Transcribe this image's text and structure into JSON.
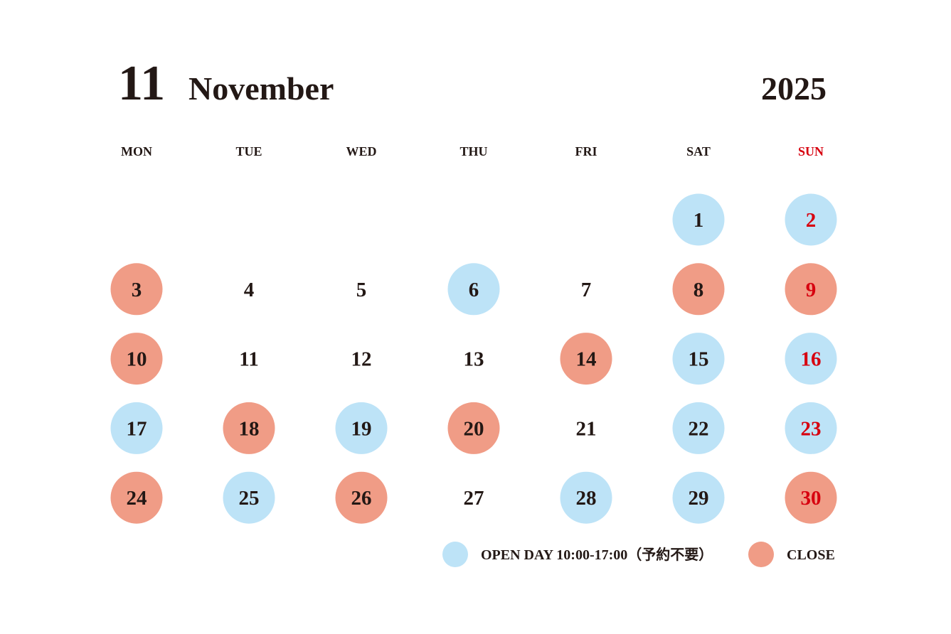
{
  "header": {
    "month_number": "11",
    "month_name": "November",
    "year": "2025"
  },
  "weekdays": [
    "MON",
    "TUE",
    "WED",
    "THU",
    "FRI",
    "SAT",
    "SUN"
  ],
  "weeks": [
    [
      null,
      null,
      null,
      null,
      null,
      {
        "day": 1,
        "color": "#bde3f7"
      },
      {
        "day": 2,
        "color": "#bde3f7"
      }
    ],
    [
      {
        "day": 3,
        "color": "#f09c86"
      },
      {
        "day": 4
      },
      {
        "day": 5
      },
      {
        "day": 6,
        "color": "#bde3f7"
      },
      {
        "day": 7
      },
      {
        "day": 8,
        "color": "#f09c86"
      },
      {
        "day": 9,
        "color": "#f09c86"
      }
    ],
    [
      {
        "day": 10,
        "color": "#f09c86"
      },
      {
        "day": 11
      },
      {
        "day": 12
      },
      {
        "day": 13
      },
      {
        "day": 14,
        "color": "#f09c86"
      },
      {
        "day": 15,
        "color": "#bde3f7"
      },
      {
        "day": 16,
        "color": "#bde3f7"
      }
    ],
    [
      {
        "day": 17,
        "color": "#bde3f7"
      },
      {
        "day": 18,
        "color": "#f09c86"
      },
      {
        "day": 19,
        "color": "#bde3f7"
      },
      {
        "day": 20,
        "color": "#f09c86"
      },
      {
        "day": 21
      },
      {
        "day": 22,
        "color": "#bde3f7"
      },
      {
        "day": 23,
        "color": "#bde3f7"
      }
    ],
    [
      {
        "day": 24,
        "color": "#f09c86"
      },
      {
        "day": 25,
        "color": "#bde3f7"
      },
      {
        "day": 26,
        "color": "#f09c86"
      },
      {
        "day": 27
      },
      {
        "day": 28,
        "color": "#bde3f7"
      },
      {
        "day": 29,
        "color": "#bde3f7"
      },
      {
        "day": 30,
        "color": "#f09c86"
      }
    ]
  ],
  "legend": [
    {
      "color": "#bde3f7",
      "label": "OPEN DAY 10:00-17:00（予約不要）"
    },
    {
      "color": "#f09c86",
      "label": "CLOSE"
    }
  ]
}
